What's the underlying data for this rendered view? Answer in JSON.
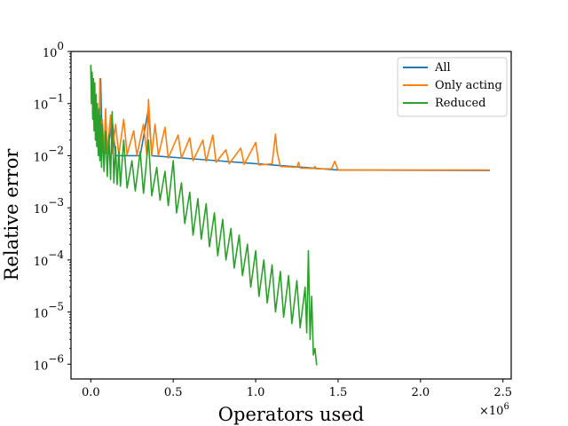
{
  "chart_data": {
    "type": "line",
    "title": "",
    "xlabel": "Operators used",
    "ylabel": "Relative error",
    "x_multiplier_label": "×10",
    "x_multiplier_exp": "6",
    "x_scale": "linear",
    "y_scale": "log",
    "xlim": [
      -0.12,
      2.55
    ],
    "ylim": [
      5.2e-07,
      1.0
    ],
    "x_ticks": [
      0.0,
      0.5,
      1.0,
      1.5,
      2.0,
      2.5
    ],
    "x_tick_labels": [
      "0.0",
      "0.5",
      "1.0",
      "1.5",
      "2.0",
      "2.5"
    ],
    "y_ticks": [
      1,
      0.1,
      0.01,
      0.001,
      0.0001,
      1e-05,
      1e-06
    ],
    "y_tick_base": "10",
    "y_tick_exps": [
      "0",
      "−1",
      "−2",
      "−3",
      "−4",
      "−5",
      "−6"
    ],
    "grid": false,
    "legend_position": "top-right",
    "series": [
      {
        "name": "All",
        "color": "#1f77b4",
        "points": [
          [
            0.0,
            0.5
          ],
          [
            0.01,
            0.1
          ],
          [
            0.012,
            0.3
          ],
          [
            0.02,
            0.05
          ],
          [
            0.022,
            0.2
          ],
          [
            0.03,
            0.03
          ],
          [
            0.032,
            0.12
          ],
          [
            0.04,
            0.02
          ],
          [
            0.05,
            0.015
          ],
          [
            0.06,
            0.3
          ],
          [
            0.07,
            0.012
          ],
          [
            0.1,
            0.011
          ],
          [
            0.13,
            0.05
          ],
          [
            0.15,
            0.01
          ],
          [
            0.3,
            0.01
          ],
          [
            0.35,
            0.08
          ],
          [
            0.37,
            0.01
          ],
          [
            1.5,
            0.0053
          ],
          [
            2.42,
            0.0052
          ]
        ]
      },
      {
        "name": "Only acting",
        "color": "#ff7f0e",
        "points": [
          [
            0.0,
            0.55
          ],
          [
            0.005,
            0.12
          ],
          [
            0.008,
            0.35
          ],
          [
            0.012,
            0.06
          ],
          [
            0.016,
            0.25
          ],
          [
            0.02,
            0.04
          ],
          [
            0.024,
            0.14
          ],
          [
            0.03,
            0.025
          ],
          [
            0.034,
            0.1
          ],
          [
            0.04,
            0.02
          ],
          [
            0.046,
            0.07
          ],
          [
            0.05,
            0.015
          ],
          [
            0.055,
            0.3
          ],
          [
            0.06,
            0.014
          ],
          [
            0.07,
            0.05
          ],
          [
            0.08,
            0.012
          ],
          [
            0.09,
            0.08
          ],
          [
            0.1,
            0.011
          ],
          [
            0.12,
            0.06
          ],
          [
            0.13,
            0.011
          ],
          [
            0.15,
            0.04
          ],
          [
            0.17,
            0.0105
          ],
          [
            0.2,
            0.05
          ],
          [
            0.22,
            0.0105
          ],
          [
            0.26,
            0.03
          ],
          [
            0.28,
            0.0102
          ],
          [
            0.32,
            0.04
          ],
          [
            0.34,
            0.0101
          ],
          [
            0.35,
            0.12
          ],
          [
            0.37,
            0.0102
          ],
          [
            0.39,
            0.04
          ],
          [
            0.41,
            0.01
          ],
          [
            0.45,
            0.035
          ],
          [
            0.47,
            0.009
          ],
          [
            0.53,
            0.025
          ],
          [
            0.55,
            0.009
          ],
          [
            0.6,
            0.022
          ],
          [
            0.62,
            0.008
          ],
          [
            0.68,
            0.02
          ],
          [
            0.7,
            0.0078
          ],
          [
            0.74,
            0.025
          ],
          [
            0.76,
            0.0075
          ],
          [
            0.82,
            0.013
          ],
          [
            0.84,
            0.007
          ],
          [
            0.91,
            0.014
          ],
          [
            0.93,
            0.0068
          ],
          [
            1.0,
            0.018
          ],
          [
            1.02,
            0.0066
          ],
          [
            1.1,
            0.007
          ],
          [
            1.12,
            0.026
          ],
          [
            1.13,
            0.012
          ],
          [
            1.15,
            0.0062
          ],
          [
            1.25,
            0.006
          ],
          [
            1.26,
            0.0075
          ],
          [
            1.27,
            0.0058
          ],
          [
            1.35,
            0.0057
          ],
          [
            1.36,
            0.0062
          ],
          [
            1.37,
            0.0056
          ],
          [
            1.46,
            0.0056
          ],
          [
            1.48,
            0.0078
          ],
          [
            1.5,
            0.0053
          ],
          [
            1.8,
            0.0053
          ],
          [
            2.0,
            0.0053
          ],
          [
            2.42,
            0.0053
          ]
        ]
      },
      {
        "name": "Reduced",
        "color": "#2ca02c",
        "points": [
          [
            0.0,
            0.55
          ],
          [
            0.004,
            0.1
          ],
          [
            0.008,
            0.4
          ],
          [
            0.012,
            0.05
          ],
          [
            0.016,
            0.3
          ],
          [
            0.02,
            0.03
          ],
          [
            0.024,
            0.25
          ],
          [
            0.028,
            0.02
          ],
          [
            0.032,
            0.15
          ],
          [
            0.036,
            0.015
          ],
          [
            0.04,
            0.1
          ],
          [
            0.045,
            0.01
          ],
          [
            0.05,
            0.08
          ],
          [
            0.055,
            0.008
          ],
          [
            0.06,
            0.06
          ],
          [
            0.065,
            0.006
          ],
          [
            0.07,
            0.04
          ],
          [
            0.08,
            0.005
          ],
          [
            0.09,
            0.03
          ],
          [
            0.1,
            0.004
          ],
          [
            0.11,
            0.025
          ],
          [
            0.12,
            0.0035
          ],
          [
            0.13,
            0.07
          ],
          [
            0.14,
            0.003
          ],
          [
            0.15,
            0.015
          ],
          [
            0.16,
            0.0028
          ],
          [
            0.17,
            0.012
          ],
          [
            0.18,
            0.0026
          ],
          [
            0.2,
            0.02
          ],
          [
            0.22,
            0.0024
          ],
          [
            0.25,
            0.008
          ],
          [
            0.27,
            0.0021
          ],
          [
            0.3,
            0.012
          ],
          [
            0.32,
            0.0019
          ],
          [
            0.35,
            0.02
          ],
          [
            0.37,
            0.0017
          ],
          [
            0.4,
            0.006
          ],
          [
            0.42,
            0.0014
          ],
          [
            0.45,
            0.005
          ],
          [
            0.47,
            0.0011
          ],
          [
            0.5,
            0.008
          ],
          [
            0.52,
            0.0008
          ],
          [
            0.55,
            0.003
          ],
          [
            0.57,
            0.0005
          ],
          [
            0.6,
            0.002
          ],
          [
            0.62,
            0.0003
          ],
          [
            0.65,
            0.0015
          ],
          [
            0.67,
            0.00025
          ],
          [
            0.7,
            0.0012
          ],
          [
            0.72,
            0.00018
          ],
          [
            0.75,
            0.0008
          ],
          [
            0.77,
            0.00012
          ],
          [
            0.8,
            0.0006
          ],
          [
            0.82,
            0.0001
          ],
          [
            0.85,
            0.0004
          ],
          [
            0.87,
            7e-05
          ],
          [
            0.9,
            0.0003
          ],
          [
            0.92,
            5e-05
          ],
          [
            0.95,
            0.0002
          ],
          [
            0.97,
            3e-05
          ],
          [
            1.0,
            0.00015
          ],
          [
            1.02,
            2e-05
          ],
          [
            1.05,
            0.0001
          ],
          [
            1.07,
            1.5e-05
          ],
          [
            1.1,
            8e-05
          ],
          [
            1.12,
            1e-05
          ],
          [
            1.15,
            6e-05
          ],
          [
            1.17,
            8e-06
          ],
          [
            1.2,
            5e-05
          ],
          [
            1.22,
            6e-06
          ],
          [
            1.25,
            4e-05
          ],
          [
            1.27,
            5e-06
          ],
          [
            1.3,
            3e-05
          ],
          [
            1.31,
            4e-06
          ],
          [
            1.32,
            0.00015
          ],
          [
            1.33,
            3e-06
          ],
          [
            1.34,
            2e-05
          ],
          [
            1.35,
            1.5e-06
          ],
          [
            1.36,
            2e-06
          ],
          [
            1.37,
            9.5e-07
          ]
        ]
      }
    ]
  }
}
